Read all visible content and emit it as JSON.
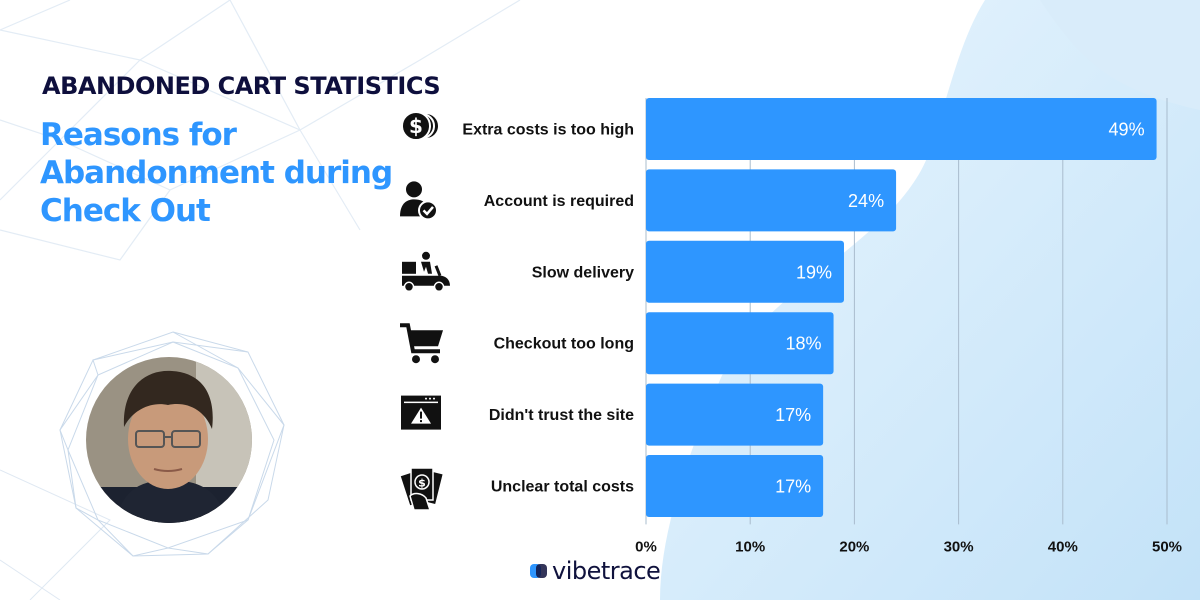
{
  "header": {
    "kicker": "ABANDONED CART STATISTICS",
    "title": "Reasons for Abandonment during Check Out"
  },
  "brand": {
    "name": "vibetrace",
    "accent": "#2e96ff",
    "dark": "#0e0f3d"
  },
  "chart_data": {
    "type": "bar",
    "orientation": "horizontal",
    "categories": [
      "Extra costs is too high",
      "Account is required",
      "Slow delivery",
      "Checkout too long",
      "Didn't trust the site",
      "Unclear total costs"
    ],
    "values": [
      49,
      24,
      19,
      18,
      17,
      17
    ],
    "data_labels": [
      "49%",
      "24%",
      "19%",
      "18%",
      "17%",
      "17%"
    ],
    "icons": [
      "dollar-coins-icon",
      "user-check-icon",
      "delivery-scooter-icon",
      "shopping-cart-icon",
      "browser-warning-icon",
      "hand-money-icon"
    ],
    "x_ticks": [
      "0%",
      "10%",
      "20%",
      "30%",
      "40%",
      "50%"
    ],
    "xlim": [
      0,
      50
    ],
    "grid": true,
    "bar_color": "#2e96ff"
  }
}
